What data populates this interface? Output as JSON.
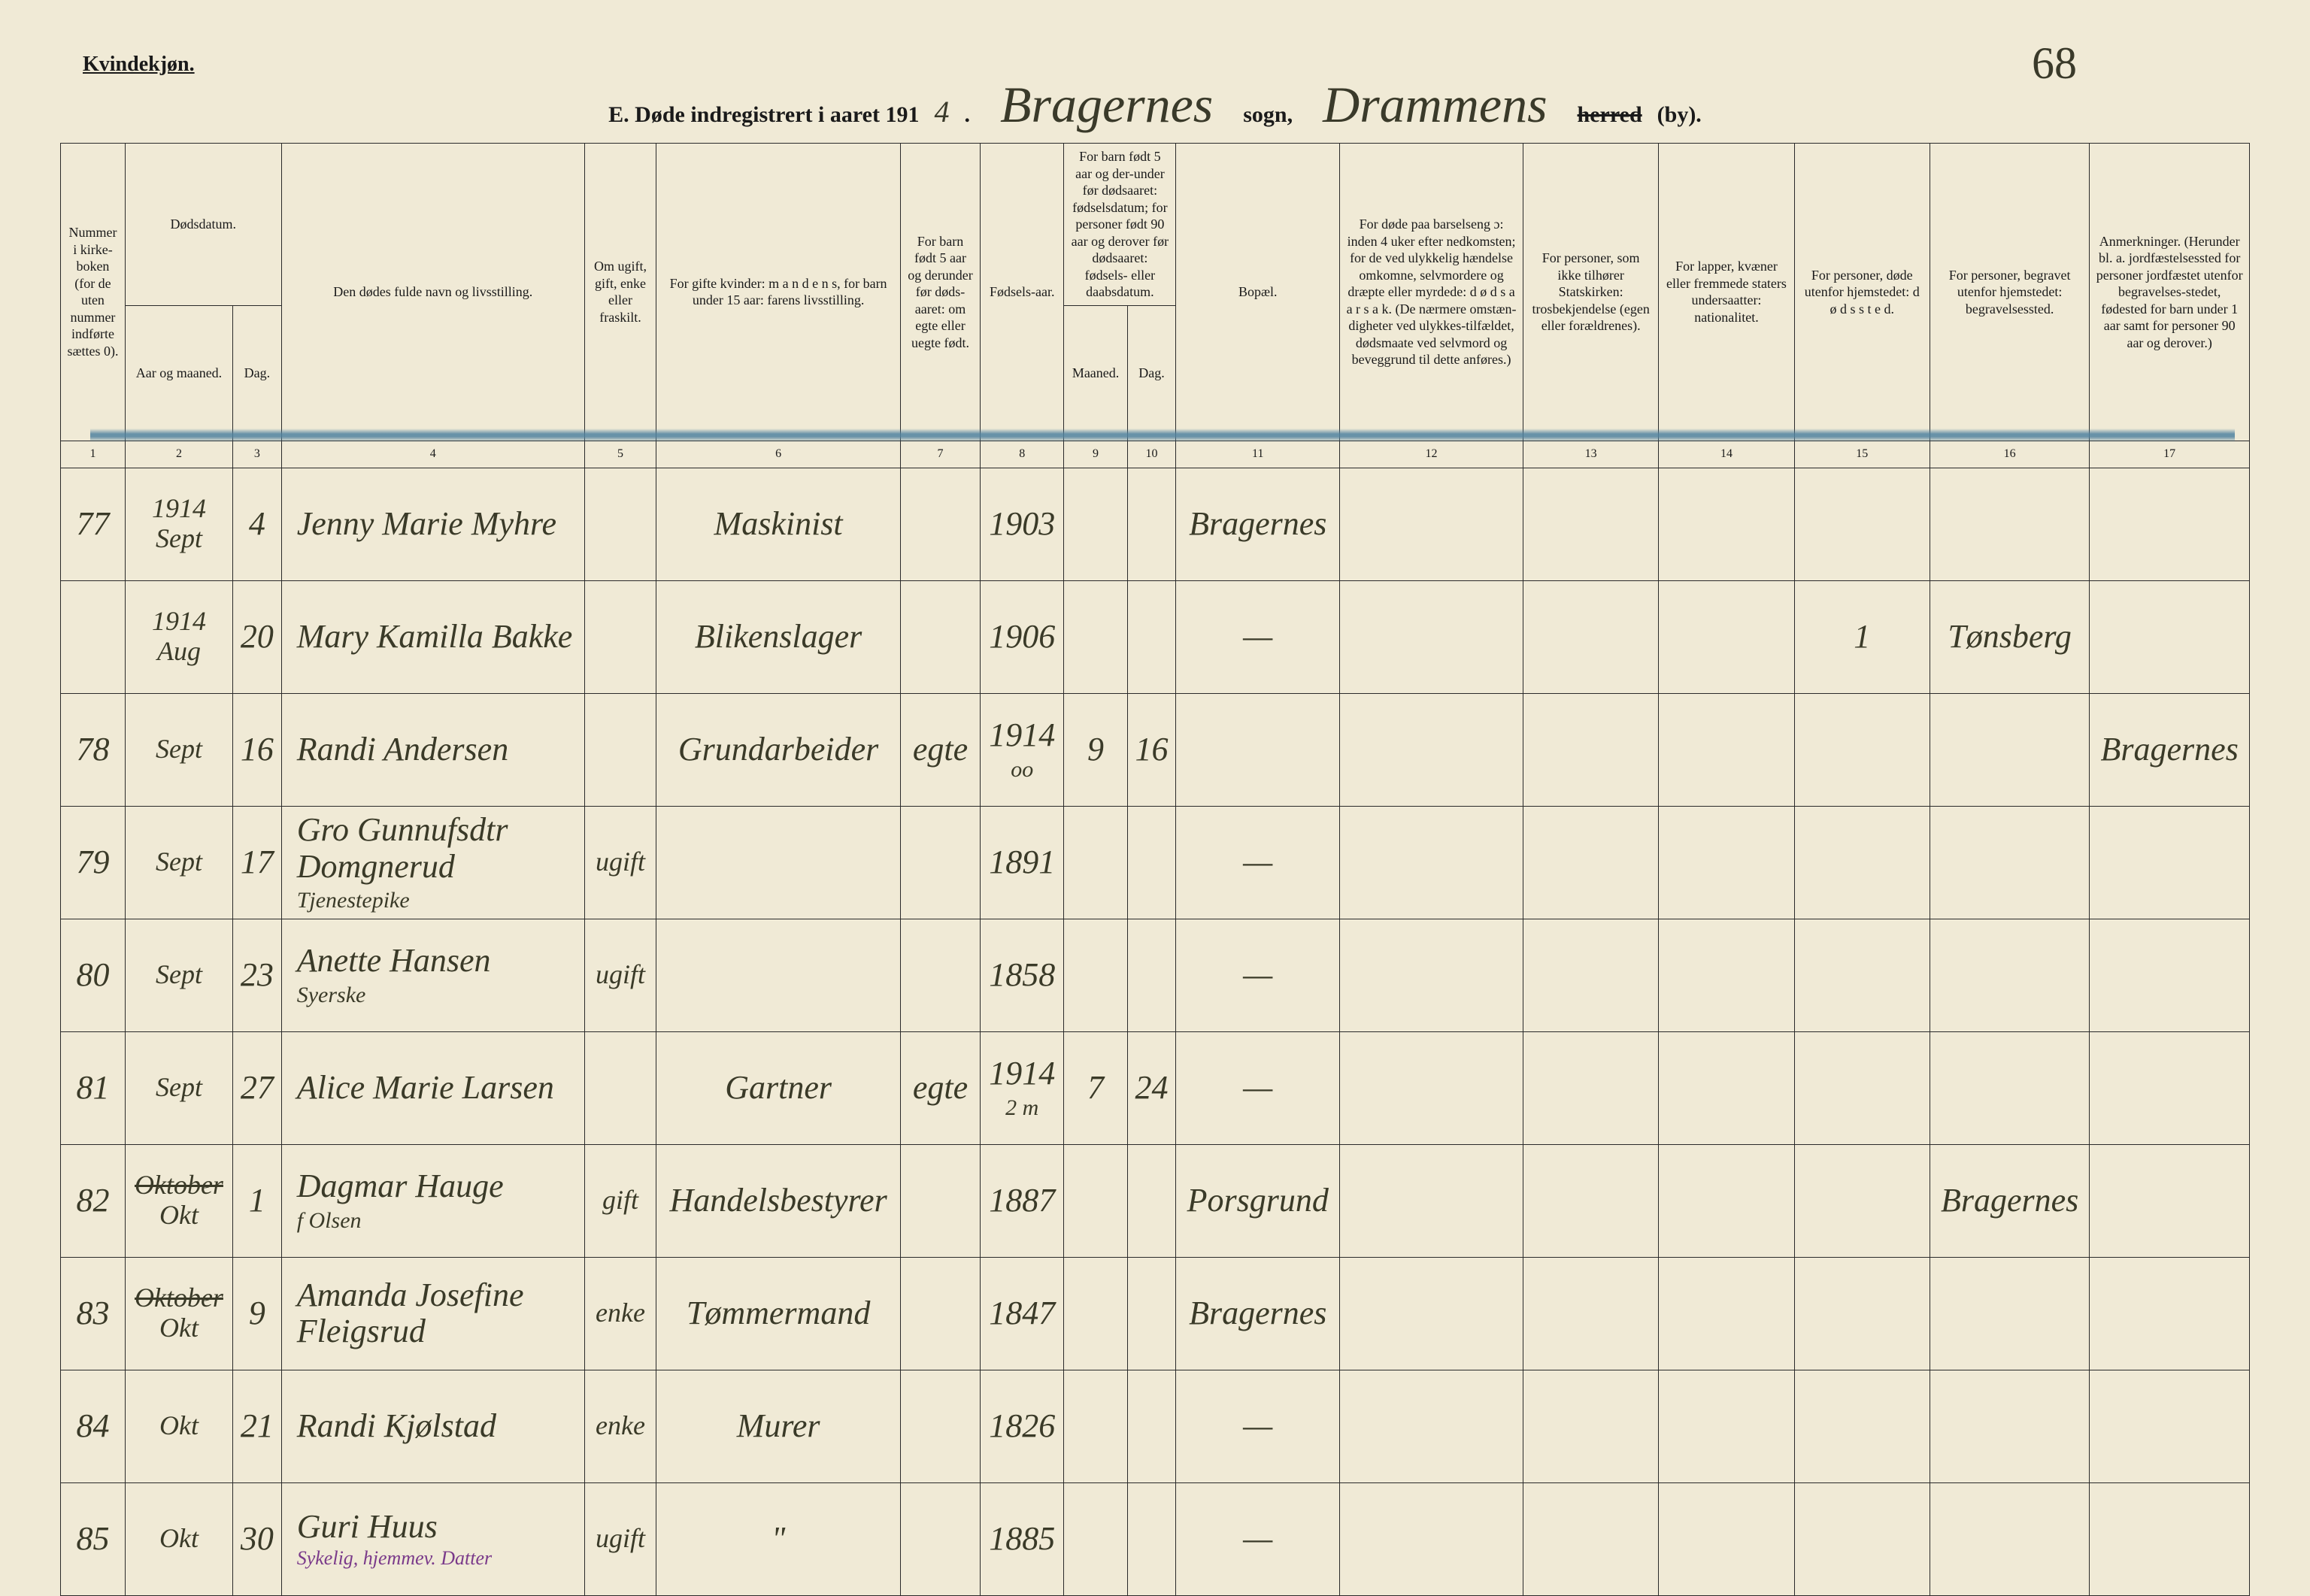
{
  "page": {
    "kvindekjon": "Kvindekjøn.",
    "title_prefix": "E.  Døde indregistrert i aaret 191",
    "year_suffix": "4",
    "period": ".",
    "sogn_script": "Bragernes",
    "sogn_label": "sogn,",
    "herred_script": "Drammens",
    "page_number": "68",
    "herred_label_struck": "herred",
    "herred_label_by": "(by)."
  },
  "headers": {
    "c1": "Nummer i kirke-boken (for de uten nummer indførte sættes 0).",
    "c2_group": "Dødsdatum.",
    "c2a": "Aar og maaned.",
    "c2b": "Dag.",
    "c4": "Den dødes fulde navn og livsstilling.",
    "c5": "Om ugift, gift, enke eller fraskilt.",
    "c6": "For gifte kvinder: m a n d e n s, for barn under 15 aar: farens livsstilling.",
    "c7": "For barn født 5 aar og derunder før døds-aaret: om egte eller uegte født.",
    "c8": "Fødsels-aar.",
    "c9_group": "For barn født 5 aar og der-under før dødsaaret: fødselsdatum; for personer født 90 aar og derover før dødsaaret: fødsels- eller daabsdatum.",
    "c9a": "Maaned.",
    "c9b": "Dag.",
    "c11": "Bopæl.",
    "c12": "For døde paa barselseng ɔ: inden 4 uker efter nedkomsten; for de ved ulykkelig hændelse omkomne, selvmordere og dræpte eller myrdede: d ø d s a a r s a k. (De nærmere omstæn-digheter ved ulykkes-tilfældet, dødsmaate ved selvmord og beveggrund til dette anføres.)",
    "c13": "For personer, som ikke tilhører Statskirken: trosbekjendelse (egen eller forældrenes).",
    "c14": "For lapper, kvæner eller fremmede staters undersaatter: nationalitet.",
    "c15": "For personer, døde utenfor hjemstedet: d ø d s s t e d.",
    "c16": "For personer, begravet utenfor hjemstedet: begravelsessted.",
    "c17": "Anmerkninger. (Herunder bl. a. jordfæstelsessted for personer jordfæstet utenfor begravelses-stedet, fødested for barn under 1 aar samt for personer 90 aar og derover.)"
  },
  "colnums": [
    "1",
    "2",
    "3",
    "4",
    "5",
    "6",
    "7",
    "8",
    "9",
    "10",
    "11",
    "12",
    "13",
    "14",
    "15",
    "16",
    "17"
  ],
  "rows": [
    {
      "num": "77",
      "aar_maaned": "1914 Sept",
      "dag": "4",
      "navn": "Jenny Marie Myhre",
      "status": "",
      "mandens": "Maskinist",
      "egte": "",
      "fodselsaar": "1903",
      "fm": "",
      "fd": "",
      "bopael": "Bragernes",
      "c15": "",
      "c16": "",
      "c17": ""
    },
    {
      "num": "",
      "aar_maaned": "1914 Aug",
      "dag": "20",
      "navn": "Mary Kamilla Bakke",
      "status": "",
      "mandens": "Blikenslager",
      "egte": "",
      "fodselsaar": "1906",
      "fm": "",
      "fd": "",
      "bopael": "—",
      "c15": "1",
      "c16": "Tønsberg",
      "c17": "",
      "struck": true
    },
    {
      "num": "78",
      "aar_maaned": "Sept",
      "dag": "16",
      "navn": "Randi Andersen",
      "status": "",
      "mandens": "Grundarbeider",
      "egte": "egte",
      "fodselsaar": "1914",
      "fm": "9",
      "fd": "16",
      "bopael": "",
      "c15": "",
      "c16": "",
      "c17": "Bragernes",
      "marginal": "√",
      "subnote": "oo"
    },
    {
      "num": "79",
      "aar_maaned": "Sept",
      "dag": "17",
      "navn": "Gro Gunnufsdtr Domgnerud",
      "sub": "Tjenestepike",
      "status": "ugift",
      "mandens": "",
      "egte": "",
      "fodselsaar": "1891",
      "fm": "",
      "fd": "",
      "bopael": "—",
      "c15": "",
      "c16": "",
      "c17": ""
    },
    {
      "num": "80",
      "aar_maaned": "Sept",
      "dag": "23",
      "navn": "Anette Hansen",
      "sub": "Syerske",
      "status": "ugift",
      "mandens": "",
      "egte": "",
      "fodselsaar": "1858",
      "fm": "",
      "fd": "",
      "bopael": "—",
      "c15": "",
      "c16": "",
      "c17": ""
    },
    {
      "num": "81",
      "aar_maaned": "Sept",
      "dag": "27",
      "navn": "Alice Marie Larsen",
      "status": "",
      "mandens": "Gartner",
      "egte": "egte",
      "fodselsaar": "1914",
      "fm": "7",
      "fd": "24",
      "bopael": "—",
      "c15": "",
      "c16": "",
      "c17": "",
      "subnote": "2 m"
    },
    {
      "num": "82",
      "aar_maaned": "Okt",
      "aar_struck": "Oktober",
      "dag": "1",
      "navn": "Dagmar Hauge",
      "sub": "f Olsen",
      "status": "gift",
      "mandens": "Handelsbestyrer",
      "egte": "",
      "fodselsaar": "1887",
      "fm": "",
      "fd": "",
      "bopael": "Porsgrund",
      "c15": "",
      "c16": "Bragernes",
      "c17": ""
    },
    {
      "num": "83",
      "aar_maaned": "Okt",
      "aar_struck": "Oktober",
      "dag": "9",
      "navn": "Amanda Josefine Fleigsrud",
      "status": "enke",
      "mandens": "Tømmermand",
      "egte": "",
      "fodselsaar": "1847",
      "fm": "",
      "fd": "",
      "bopael": "Bragernes",
      "c15": "",
      "c16": "",
      "c17": ""
    },
    {
      "num": "84",
      "aar_maaned": "Okt",
      "dag": "21",
      "navn": "Randi Kjølstad",
      "status": "enke",
      "mandens": "Murer",
      "egte": "",
      "fodselsaar": "1826",
      "fm": "",
      "fd": "",
      "bopael": "—",
      "c15": "",
      "c16": "",
      "c17": ""
    },
    {
      "num": "85",
      "aar_maaned": "Okt",
      "dag": "30",
      "navn": "Guri Huus",
      "purple": "Sykelig, hjemmev. Datter",
      "status": "ugift",
      "mandens": "\"",
      "egte": "",
      "fodselsaar": "1885",
      "fm": "",
      "fd": "",
      "bopael": "—",
      "c15": "",
      "c16": "",
      "c17": ""
    }
  ],
  "colors": {
    "paper": "#f0ead6",
    "ink": "#1a1a1a",
    "script": "#3a3a28",
    "blue_crayon": "#5082a0",
    "purple": "#7a3a8a"
  }
}
